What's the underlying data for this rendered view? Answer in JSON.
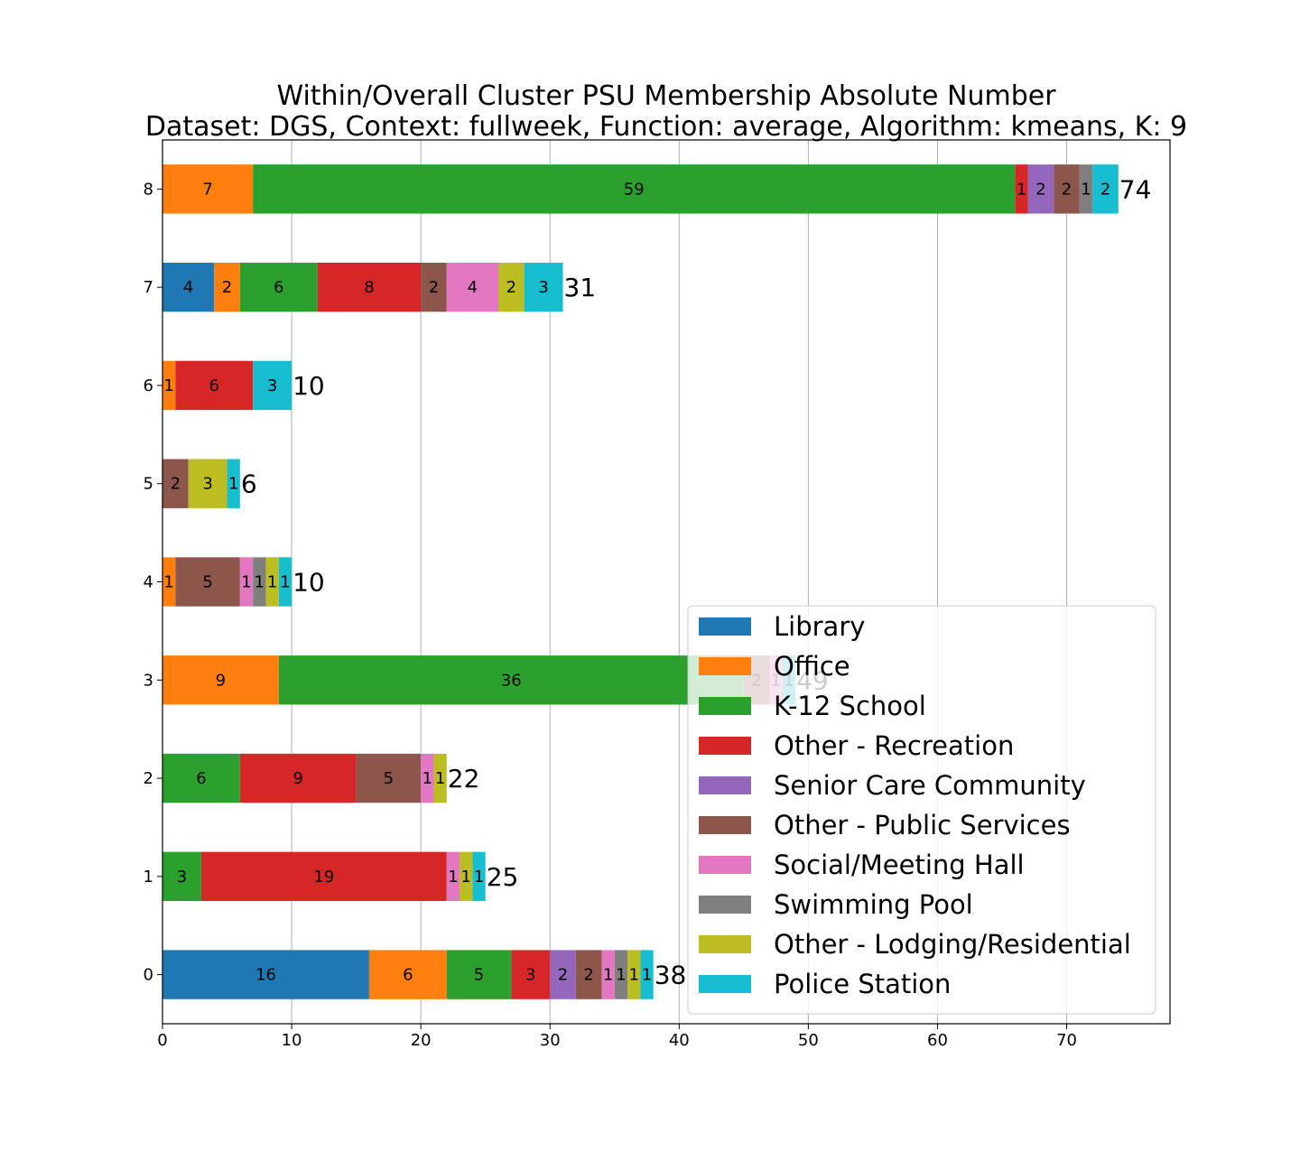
{
  "chart_data": {
    "type": "bar",
    "orientation": "horizontal",
    "stacked": true,
    "title": "Within/Overall Cluster PSU Membership Absolute Number",
    "subtitle": "Dataset: DGS, Context: fullweek, Function: average, Algorithm: kmeans, K: 9",
    "xlabel": "",
    "ylabel": "",
    "xlim": [
      0,
      78
    ],
    "x_ticks": [
      "0",
      "10",
      "20",
      "30",
      "40",
      "50",
      "60",
      "70"
    ],
    "grid": "x",
    "legend_position": "bottom-right",
    "categories": [
      "0",
      "1",
      "2",
      "3",
      "4",
      "5",
      "6",
      "7",
      "8"
    ],
    "totals": [
      "38",
      "25",
      "22",
      "49",
      "10",
      "6",
      "10",
      "31",
      "74"
    ],
    "series": [
      {
        "name": "Library",
        "color": "#1f77b4",
        "values": [
          16,
          0,
          0,
          0,
          0,
          0,
          0,
          4,
          0
        ]
      },
      {
        "name": "Office",
        "color": "#ff7f0e",
        "values": [
          6,
          0,
          0,
          9,
          1,
          0,
          1,
          2,
          7
        ]
      },
      {
        "name": "K-12 School",
        "color": "#2ca02c",
        "values": [
          5,
          3,
          6,
          36,
          0,
          0,
          0,
          6,
          59
        ]
      },
      {
        "name": "Other - Recreation",
        "color": "#d62728",
        "values": [
          3,
          19,
          9,
          0,
          0,
          0,
          6,
          8,
          1
        ]
      },
      {
        "name": "Senior Care Community",
        "color": "#9467bd",
        "values": [
          2,
          0,
          0,
          0,
          0,
          0,
          0,
          0,
          2
        ]
      },
      {
        "name": "Other - Public Services",
        "color": "#8c564b",
        "values": [
          2,
          0,
          5,
          2,
          5,
          2,
          0,
          2,
          2
        ]
      },
      {
        "name": "Social/Meeting Hall",
        "color": "#e377c2",
        "values": [
          1,
          1,
          1,
          1,
          1,
          0,
          0,
          4,
          0
        ]
      },
      {
        "name": "Swimming Pool",
        "color": "#7f7f7f",
        "values": [
          1,
          0,
          0,
          0,
          1,
          0,
          0,
          0,
          1
        ]
      },
      {
        "name": "Other - Lodging/Residential",
        "color": "#bcbd22",
        "values": [
          1,
          1,
          1,
          0,
          1,
          3,
          0,
          2,
          0
        ]
      },
      {
        "name": "Police Station",
        "color": "#17becf",
        "values": [
          1,
          1,
          0,
          1,
          1,
          1,
          3,
          3,
          2
        ]
      }
    ]
  }
}
